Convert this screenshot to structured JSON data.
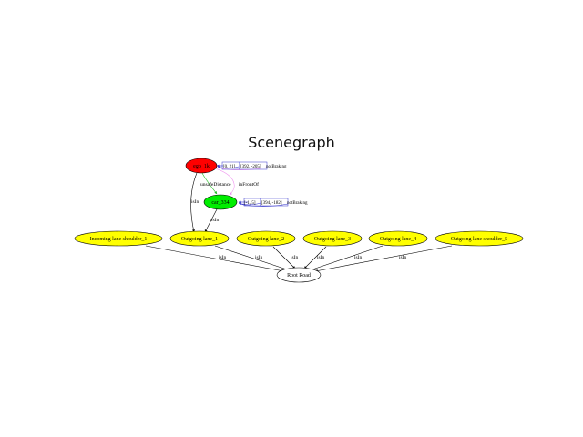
{
  "title": "Scenegraph",
  "colors": {
    "ego": "#ff0000",
    "car": "#00ee00",
    "lane": "#ffff00",
    "root": "#ffffff",
    "green_edge": "#22bb22",
    "blue_edge": "#3333cc",
    "pink_edge": "#ee88ee"
  },
  "nodes": {
    "ego": {
      "label": "ego_1k"
    },
    "car": {
      "label": "car_334"
    },
    "lane_shoulder_1": {
      "label": "Incoming lane shoulder_1"
    },
    "lane_1": {
      "label": "Outgoing lane_1"
    },
    "lane_2": {
      "label": "Outgoing lane_2"
    },
    "lane_3": {
      "label": "Outgoing lane_3"
    },
    "lane_4": {
      "label": "Outgoing lane_4"
    },
    "lane_shoulder_5": {
      "label": "Outgoing lane shoulder_5"
    },
    "root": {
      "label": "Root Road"
    }
  },
  "edge_labels": {
    "isIn": "isIn",
    "unsafe_distance": "unsafeDistance",
    "in_front_of": "inFrontOf"
  },
  "ego_attrs": [
    "[0, 21]",
    "[392, -205]",
    "notBraking"
  ],
  "car_attrs": [
    "[-1, 5]",
    "[394, -182]",
    "notBraking"
  ]
}
